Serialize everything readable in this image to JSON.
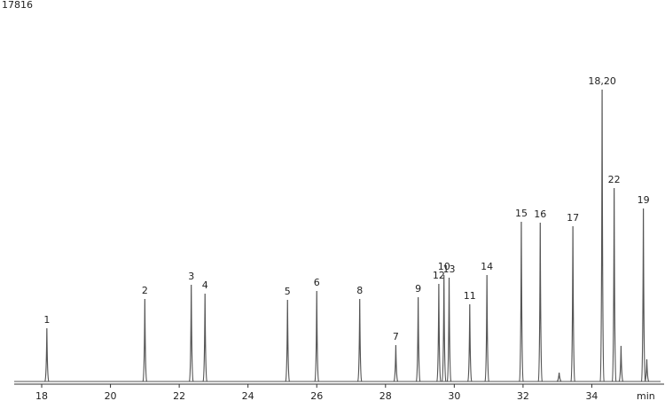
{
  "chart_data": {
    "type": "chromatogram",
    "x": [
      18.15,
      21.0,
      22.35,
      22.75,
      25.15,
      26.0,
      27.25,
      28.3,
      28.95,
      29.55,
      29.7,
      29.85,
      30.45,
      30.95,
      31.95,
      32.5,
      33.05,
      33.45,
      34.3,
      34.65,
      34.85,
      35.5,
      35.6
    ],
    "values": [
      2545,
      3945,
      4624,
      4200,
      3903,
      4327,
      3945,
      1739,
      4030,
      4666,
      5090,
      4963,
      3690,
      5090,
      7635,
      7593,
      420,
      7423,
      13956,
      9248,
      1700,
      8272,
      1060
    ],
    "labels": [
      "1",
      "2",
      "3",
      "4",
      "5",
      "6",
      "8",
      "7",
      "9",
      "12",
      "10",
      "13",
      "11",
      "14",
      "15",
      "16",
      null,
      "17",
      "18,20",
      "22",
      null,
      "19",
      null
    ],
    "color": "#555555",
    "xlim": [
      17.2,
      36.0
    ],
    "xticks": [
      18,
      20,
      22,
      24,
      26,
      28,
      30,
      32,
      34
    ],
    "xlabel": "min",
    "ylim": [
      0,
      17816
    ],
    "yticks": [
      17816
    ]
  }
}
